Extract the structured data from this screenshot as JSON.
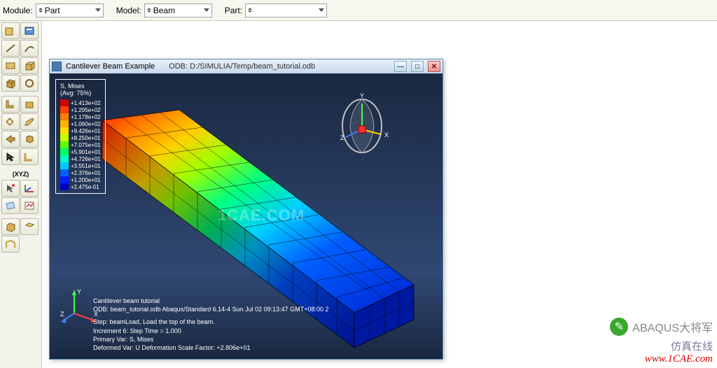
{
  "toolbar": {
    "module_label": "Module:",
    "module_value": "Part",
    "model_label": "Model:",
    "model_value": "Beam",
    "part_label": "Part:",
    "part_value": ""
  },
  "window": {
    "title_left": "Cantilever Beam Example",
    "title_right": "ODB: D:/SIMULIA/Temp/beam_tutorial.odb"
  },
  "legend": {
    "header1": "S, Mises",
    "header2": "(Avg: 75%)",
    "items": [
      {
        "color": "#d00000",
        "label": "+1.413e+02"
      },
      {
        "color": "#ff4000",
        "label": "+1.295e+02"
      },
      {
        "color": "#ff8000",
        "label": "+1.178e+02"
      },
      {
        "color": "#ffb000",
        "label": "+1.060e+02"
      },
      {
        "color": "#ffe000",
        "label": "+9.426e+01"
      },
      {
        "color": "#c8ff00",
        "label": "+8.250e+01"
      },
      {
        "color": "#60ff00",
        "label": "+7.075e+01"
      },
      {
        "color": "#00ff60",
        "label": "+5.901e+01"
      },
      {
        "color": "#00ffc8",
        "label": "+4.726e+01"
      },
      {
        "color": "#00c8ff",
        "label": "+3.551e+01"
      },
      {
        "color": "#0060ff",
        "label": "+2.376e+01"
      },
      {
        "color": "#0020ff",
        "label": "+1.200e+01"
      },
      {
        "color": "#0000c0",
        "label": "+2.475e-01"
      }
    ]
  },
  "triad": {
    "x": "X",
    "y": "Y",
    "z": "Z"
  },
  "info": {
    "l1": "Cantilever beam tutorial",
    "l2": "ODB: beam_tutorial.odb    Abaqus/Standard 6.14-4    Sun Jul 02 09:13:47 GMT+08:00 2",
    "l3": "Step: beamLoad, Load the top of the beam.",
    "l4": "Increment      6: Step Time =    1.000",
    "l5": "Primary Var: S, Mises",
    "l6": "Deformed Var: U   Deformation Scale Factor: +2.806e+01"
  },
  "watermark": "1CAE.COM",
  "signature": {
    "line1": "ABAQUS大将军",
    "line2": "仿真在线",
    "line3": "www.1CAE.com"
  },
  "toolbox_icons": [
    [
      "create-part-icon",
      "part-manager-icon"
    ],
    [
      "line-tool-icon",
      "arc-tool-icon"
    ],
    [
      "rect-tool-icon",
      "box-tool-icon"
    ],
    [
      "cube-tool-icon",
      "circle-tool-icon"
    ],
    [
      "separator"
    ],
    [
      "extrude-l-icon",
      "extrude-box-icon"
    ],
    [
      "cut-tool-icon",
      "pencil-icon"
    ],
    [
      "arrow-l-icon",
      "cube3-tool-icon"
    ],
    [
      "pointer-tool-icon",
      "corner-tool-icon"
    ],
    [
      "separator"
    ],
    [
      "xyz-label"
    ],
    [
      "pointer3d-icon",
      "axis-tool-icon"
    ],
    [
      "plane-tool-icon",
      "chart-tool-icon"
    ],
    [
      "separator"
    ],
    [
      "cube-solid-icon",
      "shell-tool-icon"
    ],
    [
      "wire-tool-icon",
      "empty"
    ]
  ],
  "colors": {
    "viewport_bg_top": "#1a2840",
    "viewport_bg_bot": "#304872",
    "axis_x": "#ff4040",
    "axis_y": "#40ff40",
    "axis_z": "#4080ff"
  }
}
